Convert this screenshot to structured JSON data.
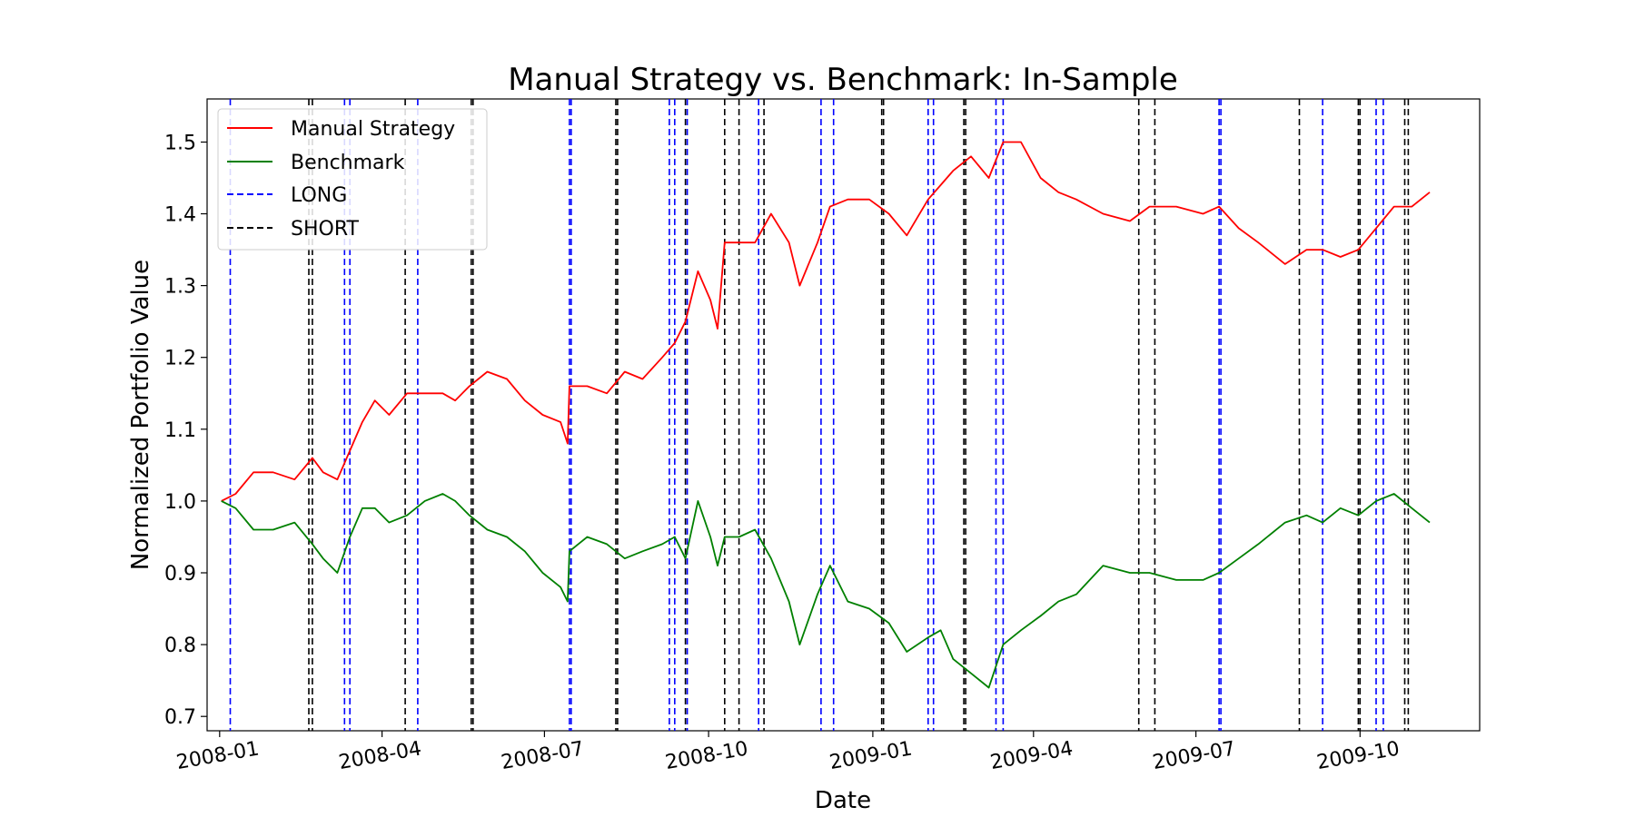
{
  "chart_data": {
    "type": "line",
    "title": "Manual Strategy vs. Benchmark: In-Sample",
    "xlabel": "Date",
    "ylabel": "Normalized Portfolio Value",
    "xlim": [
      "2007-12-25",
      "2009-12-07"
    ],
    "ylim": [
      0.68,
      1.56
    ],
    "x_ticks": [
      "2008-01",
      "2008-04",
      "2008-07",
      "2008-10",
      "2009-01",
      "2009-04",
      "2009-07",
      "2009-10"
    ],
    "y_ticks": [
      0.7,
      0.8,
      0.9,
      1.0,
      1.1,
      1.2,
      1.3,
      1.4,
      1.5
    ],
    "grid": false,
    "legend_position": "top-left",
    "series": [
      {
        "name": "Manual Strategy",
        "color": "#ff0000",
        "x": [
          "2008-01-02",
          "2008-01-10",
          "2008-01-20",
          "2008-01-31",
          "2008-02-12",
          "2008-02-22",
          "2008-02-28",
          "2008-03-07",
          "2008-03-14",
          "2008-03-21",
          "2008-03-28",
          "2008-04-05",
          "2008-04-15",
          "2008-04-25",
          "2008-05-05",
          "2008-05-12",
          "2008-05-20",
          "2008-05-30",
          "2008-06-10",
          "2008-06-20",
          "2008-06-30",
          "2008-07-10",
          "2008-07-14",
          "2008-07-15",
          "2008-07-25",
          "2008-08-05",
          "2008-08-15",
          "2008-08-25",
          "2008-09-05",
          "2008-09-12",
          "2008-09-18",
          "2008-09-25",
          "2008-10-02",
          "2008-10-06",
          "2008-10-10",
          "2008-10-18",
          "2008-10-27",
          "2008-11-05",
          "2008-11-15",
          "2008-11-21",
          "2008-12-01",
          "2008-12-08",
          "2008-12-18",
          "2008-12-30",
          "2009-01-10",
          "2009-01-20",
          "2009-02-01",
          "2009-02-08",
          "2009-02-15",
          "2009-02-25",
          "2009-03-07",
          "2009-03-15",
          "2009-03-25",
          "2009-04-05",
          "2009-04-15",
          "2009-04-25",
          "2009-05-10",
          "2009-05-25",
          "2009-06-05",
          "2009-06-20",
          "2009-07-05",
          "2009-07-14",
          "2009-07-25",
          "2009-08-05",
          "2009-08-20",
          "2009-09-01",
          "2009-09-10",
          "2009-09-20",
          "2009-09-30",
          "2009-10-10",
          "2009-10-20",
          "2009-10-30",
          "2009-11-09"
        ],
        "values": [
          1.0,
          1.01,
          1.04,
          1.04,
          1.03,
          1.06,
          1.04,
          1.03,
          1.07,
          1.11,
          1.14,
          1.12,
          1.15,
          1.15,
          1.15,
          1.14,
          1.16,
          1.18,
          1.17,
          1.14,
          1.12,
          1.11,
          1.08,
          1.16,
          1.16,
          1.15,
          1.18,
          1.17,
          1.2,
          1.22,
          1.25,
          1.32,
          1.28,
          1.24,
          1.36,
          1.36,
          1.36,
          1.4,
          1.36,
          1.3,
          1.36,
          1.41,
          1.42,
          1.42,
          1.4,
          1.37,
          1.42,
          1.44,
          1.46,
          1.48,
          1.45,
          1.5,
          1.5,
          1.45,
          1.43,
          1.42,
          1.4,
          1.39,
          1.41,
          1.41,
          1.4,
          1.41,
          1.38,
          1.36,
          1.33,
          1.35,
          1.35,
          1.34,
          1.35,
          1.38,
          1.41,
          1.41,
          1.43
        ]
      },
      {
        "name": "Benchmark",
        "color": "#008000",
        "x": [
          "2008-01-02",
          "2008-01-10",
          "2008-01-20",
          "2008-01-31",
          "2008-02-12",
          "2008-02-22",
          "2008-02-28",
          "2008-03-07",
          "2008-03-14",
          "2008-03-21",
          "2008-03-28",
          "2008-04-05",
          "2008-04-15",
          "2008-04-25",
          "2008-05-05",
          "2008-05-12",
          "2008-05-20",
          "2008-05-30",
          "2008-06-10",
          "2008-06-20",
          "2008-06-30",
          "2008-07-10",
          "2008-07-14",
          "2008-07-15",
          "2008-07-25",
          "2008-08-05",
          "2008-08-15",
          "2008-08-25",
          "2008-09-05",
          "2008-09-12",
          "2008-09-18",
          "2008-09-25",
          "2008-10-02",
          "2008-10-06",
          "2008-10-10",
          "2008-10-18",
          "2008-10-27",
          "2008-11-05",
          "2008-11-15",
          "2008-11-21",
          "2008-12-01",
          "2008-12-08",
          "2008-12-18",
          "2008-12-30",
          "2009-01-10",
          "2009-01-20",
          "2009-02-01",
          "2009-02-08",
          "2009-02-15",
          "2009-02-25",
          "2009-03-07",
          "2009-03-15",
          "2009-03-25",
          "2009-04-05",
          "2009-04-15",
          "2009-04-25",
          "2009-05-10",
          "2009-05-25",
          "2009-06-05",
          "2009-06-20",
          "2009-07-05",
          "2009-07-14",
          "2009-07-25",
          "2009-08-05",
          "2009-08-20",
          "2009-09-01",
          "2009-09-10",
          "2009-09-20",
          "2009-09-30",
          "2009-10-10",
          "2009-10-20",
          "2009-10-30",
          "2009-11-09"
        ],
        "values": [
          1.0,
          0.99,
          0.96,
          0.96,
          0.97,
          0.94,
          0.92,
          0.9,
          0.95,
          0.99,
          0.99,
          0.97,
          0.98,
          1.0,
          1.01,
          1.0,
          0.98,
          0.96,
          0.95,
          0.93,
          0.9,
          0.88,
          0.86,
          0.93,
          0.95,
          0.94,
          0.92,
          0.93,
          0.94,
          0.95,
          0.92,
          1.0,
          0.95,
          0.91,
          0.95,
          0.95,
          0.96,
          0.92,
          0.86,
          0.8,
          0.87,
          0.91,
          0.86,
          0.85,
          0.83,
          0.79,
          0.81,
          0.82,
          0.78,
          0.76,
          0.74,
          0.8,
          0.82,
          0.84,
          0.86,
          0.87,
          0.91,
          0.9,
          0.9,
          0.89,
          0.89,
          0.9,
          0.92,
          0.94,
          0.97,
          0.98,
          0.97,
          0.99,
          0.98,
          1.0,
          1.01,
          0.99,
          0.97
        ]
      }
    ],
    "signals": [
      {
        "name": "LONG",
        "color": "#0000ff",
        "dates": [
          "2008-01-07",
          "2008-03-11",
          "2008-03-14",
          "2008-04-21",
          "2008-07-15",
          "2008-07-16",
          "2008-09-09",
          "2008-09-12",
          "2008-09-19",
          "2008-10-29",
          "2008-12-03",
          "2008-12-10",
          "2009-02-01",
          "2009-02-04",
          "2009-03-11",
          "2009-03-15",
          "2009-07-14",
          "2009-07-15",
          "2009-09-10",
          "2009-10-10",
          "2009-10-14"
        ]
      },
      {
        "name": "SHORT",
        "color": "#000000",
        "dates": [
          "2008-02-20",
          "2008-02-22",
          "2008-04-14",
          "2008-05-21",
          "2008-05-22",
          "2008-08-10",
          "2008-08-11",
          "2008-09-18",
          "2008-10-10",
          "2008-10-18",
          "2008-11-01",
          "2009-01-06",
          "2009-01-07",
          "2009-02-21",
          "2009-02-22",
          "2009-05-30",
          "2009-06-08",
          "2009-08-28",
          "2009-09-30",
          "2009-10-01",
          "2009-10-26",
          "2009-10-28"
        ]
      }
    ]
  }
}
